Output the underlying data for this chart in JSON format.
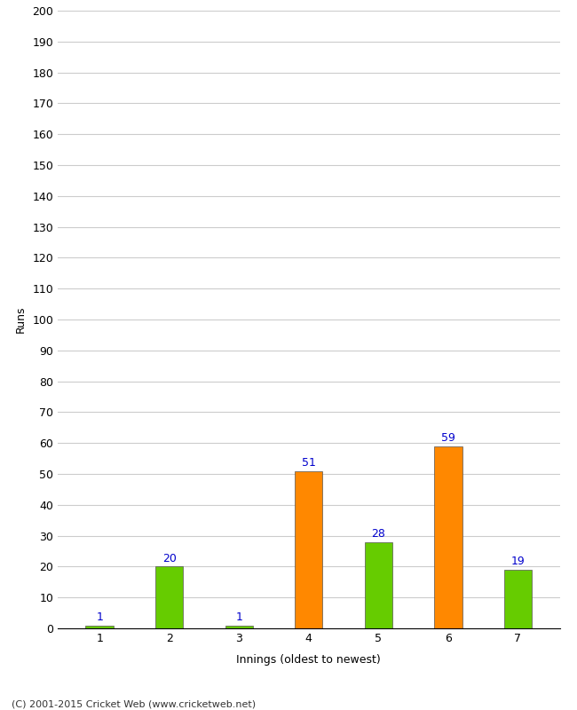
{
  "categories": [
    "1",
    "2",
    "3",
    "4",
    "5",
    "6",
    "7"
  ],
  "values": [
    1,
    20,
    1,
    51,
    28,
    59,
    19
  ],
  "colors": [
    "#66cc00",
    "#66cc00",
    "#66cc00",
    "#ff8800",
    "#66cc00",
    "#ff8800",
    "#66cc00"
  ],
  "xlabel": "Innings (oldest to newest)",
  "ylabel": "Runs",
  "ylim": [
    0,
    200
  ],
  "yticks": [
    0,
    10,
    20,
    30,
    40,
    50,
    60,
    70,
    80,
    90,
    100,
    110,
    120,
    130,
    140,
    150,
    160,
    170,
    180,
    190,
    200
  ],
  "label_color": "#0000cc",
  "footer": "(C) 2001-2015 Cricket Web (www.cricketweb.net)",
  "background_color": "#ffffff",
  "grid_color": "#cccccc",
  "bar_edge_color": "#555555",
  "bar_width": 0.4
}
